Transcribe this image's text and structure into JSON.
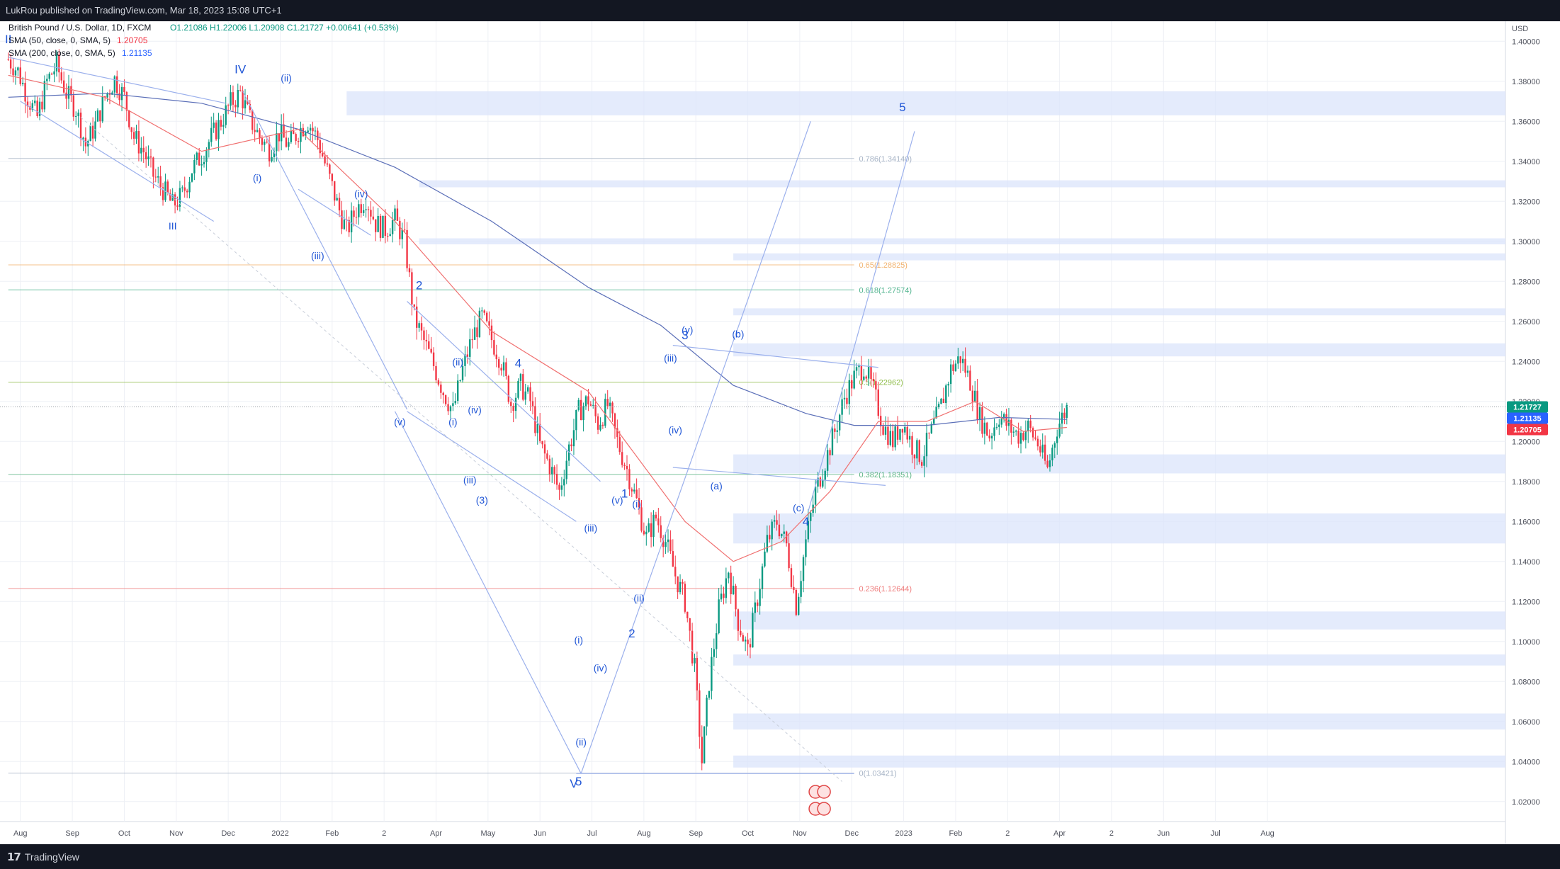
{
  "header": {
    "publish_text": "LukRou published on TradingView.com, Mar 18, 2023 15:08 UTC+1"
  },
  "legend": {
    "symbol": "British Pound / U.S. Dollar, 1D, FXCM",
    "ohlc": {
      "o": "O1.21086",
      "h": "H1.22006",
      "l": "L1.20908",
      "c": "C1.21727",
      "chg": "+0.00641 (+0.53%)"
    },
    "ma50": {
      "label": "SMA (50, close, 0, SMA, 5)",
      "value": "1.20705",
      "color": "#f23645"
    },
    "ma200": {
      "label": "SMA (200, close, 0, SMA, 5)",
      "value": "1.21135",
      "color": "#2962ff"
    }
  },
  "footer": {
    "logo_mark": "𝟭𝟳",
    "brand": "TradingView"
  },
  "colors": {
    "background": "#131722",
    "bg_light": "#ffffff",
    "grid": "#eef0f5",
    "up": "#089981",
    "down": "#f23645",
    "wave_label": "#2056d6",
    "zone": "#dbe4fb",
    "trend_line": "#9bb0ec"
  },
  "chart_data": {
    "type": "candlestick",
    "title": "British Pound / U.S. Dollar, 1D, FXCM",
    "currency_label": "USD",
    "y_ticks": [
      "1.40000",
      "1.38000",
      "1.36000",
      "1.34000",
      "1.32000",
      "1.30000",
      "1.28000",
      "1.26000",
      "1.24000",
      "1.22000",
      "1.20000",
      "1.18000",
      "1.16000",
      "1.14000",
      "1.12000",
      "1.10000",
      "1.08000",
      "1.06000",
      "1.04000",
      "1.02000"
    ],
    "ylim": [
      1.01,
      1.41
    ],
    "x_ticks": [
      "Aug",
      "Sep",
      "Oct",
      "Nov",
      "Dec",
      "2022",
      "Feb",
      "2",
      "Apr",
      "May",
      "Jun",
      "Jul",
      "Aug",
      "Sep",
      "Oct",
      "Nov",
      "Dec",
      "2023",
      "Feb",
      "2",
      "Apr",
      "2",
      "Jun",
      "Jul",
      "Aug"
    ],
    "price_badges": [
      {
        "value": "1.21727",
        "color": "#089981"
      },
      {
        "value": "1.21135",
        "color": "#2962ff"
      },
      {
        "value": "1.20705",
        "color": "#f23645"
      }
    ],
    "close_path": [
      [
        0,
        1.391
      ],
      [
        4,
        1.385
      ],
      [
        8,
        1.372
      ],
      [
        12,
        1.362
      ],
      [
        16,
        1.38
      ],
      [
        20,
        1.388
      ],
      [
        24,
        1.374
      ],
      [
        28,
        1.366
      ],
      [
        32,
        1.348
      ],
      [
        36,
        1.358
      ],
      [
        40,
        1.372
      ],
      [
        44,
        1.381
      ],
      [
        48,
        1.372
      ],
      [
        52,
        1.352
      ],
      [
        56,
        1.345
      ],
      [
        60,
        1.333
      ],
      [
        64,
        1.326
      ],
      [
        68,
        1.318
      ],
      [
        72,
        1.323
      ],
      [
        76,
        1.336
      ],
      [
        80,
        1.343
      ],
      [
        84,
        1.352
      ],
      [
        88,
        1.36
      ],
      [
        92,
        1.369
      ],
      [
        96,
        1.374
      ],
      [
        100,
        1.361
      ],
      [
        104,
        1.352
      ],
      [
        108,
        1.346
      ],
      [
        112,
        1.354
      ],
      [
        116,
        1.348
      ],
      [
        120,
        1.355
      ],
      [
        124,
        1.36
      ],
      [
        128,
        1.351
      ],
      [
        132,
        1.335
      ],
      [
        136,
        1.319
      ],
      [
        140,
        1.305
      ],
      [
        144,
        1.316
      ],
      [
        148,
        1.322
      ],
      [
        152,
        1.309
      ],
      [
        156,
        1.306
      ],
      [
        160,
        1.311
      ],
      [
        164,
        1.3
      ],
      [
        168,
        1.262
      ],
      [
        172,
        1.25
      ],
      [
        176,
        1.238
      ],
      [
        180,
        1.225
      ],
      [
        184,
        1.215
      ],
      [
        188,
        1.236
      ],
      [
        192,
        1.252
      ],
      [
        196,
        1.262
      ],
      [
        200,
        1.251
      ],
      [
        204,
        1.24
      ],
      [
        208,
        1.219
      ],
      [
        212,
        1.228
      ],
      [
        216,
        1.22
      ],
      [
        220,
        1.198
      ],
      [
        224,
        1.188
      ],
      [
        228,
        1.175
      ],
      [
        232,
        1.197
      ],
      [
        236,
        1.215
      ],
      [
        240,
        1.221
      ],
      [
        244,
        1.209
      ],
      [
        248,
        1.218
      ],
      [
        252,
        1.2
      ],
      [
        256,
        1.186
      ],
      [
        260,
        1.17
      ],
      [
        264,
        1.152
      ],
      [
        268,
        1.162
      ],
      [
        272,
        1.15
      ],
      [
        276,
        1.133
      ],
      [
        280,
        1.12
      ],
      [
        284,
        1.086
      ],
      [
        287,
        1.04
      ],
      [
        290,
        1.08
      ],
      [
        294,
        1.116
      ],
      [
        298,
        1.136
      ],
      [
        302,
        1.11
      ],
      [
        306,
        1.095
      ],
      [
        310,
        1.122
      ],
      [
        314,
        1.15
      ],
      [
        318,
        1.16
      ],
      [
        322,
        1.148
      ],
      [
        326,
        1.118
      ],
      [
        330,
        1.15
      ],
      [
        334,
        1.175
      ],
      [
        338,
        1.19
      ],
      [
        342,
        1.205
      ],
      [
        346,
        1.222
      ],
      [
        350,
        1.232
      ],
      [
        354,
        1.238
      ],
      [
        358,
        1.225
      ],
      [
        362,
        1.208
      ],
      [
        366,
        1.2
      ],
      [
        370,
        1.21
      ],
      [
        374,
        1.198
      ],
      [
        378,
        1.192
      ],
      [
        382,
        1.205
      ],
      [
        386,
        1.218
      ],
      [
        390,
        1.236
      ],
      [
        394,
        1.242
      ],
      [
        398,
        1.23
      ],
      [
        402,
        1.212
      ],
      [
        406,
        1.203
      ],
      [
        410,
        1.213
      ],
      [
        414,
        1.207
      ],
      [
        418,
        1.203
      ],
      [
        422,
        1.207
      ],
      [
        426,
        1.199
      ],
      [
        430,
        1.186
      ],
      [
        434,
        1.207
      ],
      [
        438,
        1.217
      ]
    ],
    "ma50_path": [
      [
        0,
        1.383
      ],
      [
        40,
        1.372
      ],
      [
        80,
        1.345
      ],
      [
        120,
        1.356
      ],
      [
        160,
        1.31
      ],
      [
        200,
        1.255
      ],
      [
        240,
        1.225
      ],
      [
        280,
        1.16
      ],
      [
        300,
        1.14
      ],
      [
        320,
        1.15
      ],
      [
        340,
        1.175
      ],
      [
        360,
        1.21
      ],
      [
        380,
        1.21
      ],
      [
        400,
        1.22
      ],
      [
        420,
        1.205
      ],
      [
        438,
        1.207
      ]
    ],
    "ma200_path": [
      [
        0,
        1.372
      ],
      [
        40,
        1.374
      ],
      [
        80,
        1.369
      ],
      [
        120,
        1.356
      ],
      [
        160,
        1.337
      ],
      [
        200,
        1.31
      ],
      [
        240,
        1.277
      ],
      [
        270,
        1.258
      ],
      [
        300,
        1.228
      ],
      [
        330,
        1.214
      ],
      [
        350,
        1.208
      ],
      [
        380,
        1.208
      ],
      [
        410,
        1.212
      ],
      [
        438,
        1.211
      ]
    ],
    "fibonacci": [
      {
        "label": "0.786(1.34140)",
        "value": 1.3414,
        "color": "#a7b4c6"
      },
      {
        "label": "0.65(1.28825)",
        "value": 1.28825,
        "color": "#f2b36f"
      },
      {
        "label": "0.618(1.27574)",
        "value": 1.27574,
        "color": "#4fb38d"
      },
      {
        "label": "0.5(1.22962)",
        "value": 1.22962,
        "color": "#8fbd4a"
      },
      {
        "label": "0.382(1.18351)",
        "value": 1.18351,
        "color": "#5eb585"
      },
      {
        "label": "0.236(1.12644)",
        "value": 1.12644,
        "color": "#ef7d7d"
      },
      {
        "label": "0(1.03421)",
        "value": 1.03421,
        "color": "#a7b4c6"
      }
    ],
    "zones": [
      [
        1.363,
        1.375
      ],
      [
        1.327,
        1.3305
      ],
      [
        1.2985,
        1.3015
      ],
      [
        1.2905,
        1.294
      ],
      [
        1.263,
        1.2665
      ],
      [
        1.2425,
        1.249
      ],
      [
        1.184,
        1.1935
      ],
      [
        1.149,
        1.164
      ],
      [
        1.106,
        1.115
      ],
      [
        1.088,
        1.0935
      ],
      [
        1.056,
        1.064
      ],
      [
        1.037,
        1.043
      ]
    ],
    "wave_labels": [
      {
        "text": "II",
        "x": 0,
        "y": 1.399
      },
      {
        "text": "III",
        "x": 68,
        "y": 1.306
      },
      {
        "text": "IV",
        "x": 96,
        "y": 1.384
      },
      {
        "text": "(ii)",
        "x": 115,
        "y": 1.38
      },
      {
        "text": "(i)",
        "x": 103,
        "y": 1.33
      },
      {
        "text": "(iv)",
        "x": 146,
        "y": 1.322
      },
      {
        "text": "(iii)",
        "x": 128,
        "y": 1.291
      },
      {
        "text": "2",
        "x": 170,
        "y": 1.276
      },
      {
        "text": "(ii)",
        "x": 186,
        "y": 1.238
      },
      {
        "text": "4",
        "x": 211,
        "y": 1.237
      },
      {
        "text": "(v)",
        "x": 162,
        "y": 1.208
      },
      {
        "text": "(i)",
        "x": 184,
        "y": 1.208
      },
      {
        "text": "(iv)",
        "x": 193,
        "y": 1.214
      },
      {
        "text": "(iii)",
        "x": 191,
        "y": 1.179
      },
      {
        "text": "(3)",
        "x": 196,
        "y": 1.169
      },
      {
        "text": "(iii)",
        "x": 241,
        "y": 1.155
      },
      {
        "text": "(v)",
        "x": 252,
        "y": 1.169
      },
      {
        "text": "1",
        "x": 255,
        "y": 1.172
      },
      {
        "text": "(i)",
        "x": 260,
        "y": 1.167
      },
      {
        "text": "(i)",
        "x": 236,
        "y": 1.099
      },
      {
        "text": "(iv)",
        "x": 245,
        "y": 1.085
      },
      {
        "text": "(ii)",
        "x": 237,
        "y": 1.048
      },
      {
        "text": "V",
        "x": 234,
        "y": 1.027
      },
      {
        "text": "5",
        "x": 236,
        "y": 1.028
      },
      {
        "text": "(ii)",
        "x": 261,
        "y": 1.12
      },
      {
        "text": "2",
        "x": 258,
        "y": 1.102
      },
      {
        "text": "(y)",
        "x": 281,
        "y": 1.254
      },
      {
        "text": "3",
        "x": 280,
        "y": 1.251
      },
      {
        "text": "(iii)",
        "x": 274,
        "y": 1.24
      },
      {
        "text": "(iv)",
        "x": 276,
        "y": 1.204
      },
      {
        "text": "(b)",
        "x": 302,
        "y": 1.252
      },
      {
        "text": "(a)",
        "x": 293,
        "y": 1.176
      },
      {
        "text": "(c)",
        "x": 327,
        "y": 1.165
      },
      {
        "text": "4",
        "x": 330,
        "y": 1.158
      },
      {
        "text": "5",
        "x": 370,
        "y": 1.365
      }
    ],
    "flags": [
      {
        "name": "uk-flag-icon"
      },
      {
        "name": "us-flag-icon"
      }
    ]
  }
}
